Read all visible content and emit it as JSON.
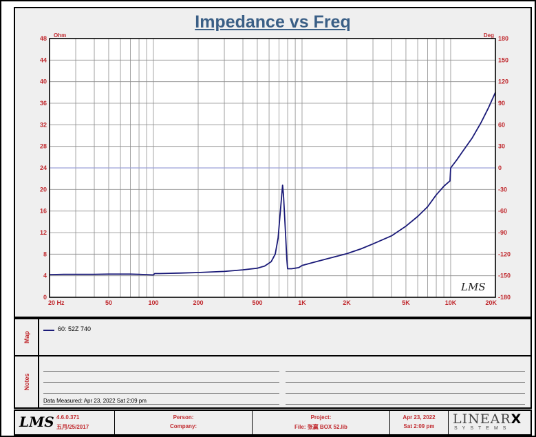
{
  "chart_data": {
    "type": "line",
    "title": "Impedance vs Freq",
    "y_unit_left": "Ohm",
    "y_unit_right": "Deg",
    "x_scale": "log",
    "xlim": [
      20,
      20000
    ],
    "ylim": [
      0,
      48
    ],
    "y2lim": [
      -180,
      180
    ],
    "x_tick_labels": [
      {
        "value": 20,
        "label": "20  Hz"
      },
      {
        "value": 50,
        "label": "50"
      },
      {
        "value": 100,
        "label": "100"
      },
      {
        "value": 200,
        "label": "200"
      },
      {
        "value": 500,
        "label": "500"
      },
      {
        "value": 1000,
        "label": "1K"
      },
      {
        "value": 2000,
        "label": "2K"
      },
      {
        "value": 5000,
        "label": "5K"
      },
      {
        "value": 10000,
        "label": "10K"
      },
      {
        "value": 20000,
        "label": "20K"
      }
    ],
    "y_ticks": [
      0,
      4,
      8,
      12,
      16,
      20,
      24,
      28,
      32,
      36,
      40,
      44,
      48
    ],
    "y2_ticks": [
      -180,
      -150,
      -120,
      -90,
      -60,
      -30,
      0,
      30,
      60,
      90,
      120,
      150,
      180
    ],
    "grid": true,
    "series": [
      {
        "name": "60: 52Z   740",
        "color": "#1a1a78",
        "x": [
          20,
          25,
          30,
          40,
          50,
          60,
          70,
          80,
          90,
          100,
          102,
          110,
          130,
          150,
          200,
          300,
          400,
          500,
          560,
          620,
          660,
          690,
          710,
          730,
          740,
          750,
          770,
          790,
          800,
          850,
          900,
          950,
          1000,
          1200,
          1500,
          2000,
          2500,
          3000,
          4000,
          5000,
          6000,
          7000,
          8000,
          9000,
          9900,
          10000,
          11000,
          12000,
          14000,
          16000,
          18000,
          20000
        ],
        "y": [
          4.2,
          4.25,
          4.25,
          4.25,
          4.3,
          4.3,
          4.3,
          4.25,
          4.2,
          4.15,
          4.4,
          4.4,
          4.45,
          4.5,
          4.6,
          4.8,
          5.1,
          5.4,
          5.8,
          6.6,
          8,
          11,
          15,
          19,
          20.8,
          19,
          13,
          7,
          5.3,
          5.3,
          5.4,
          5.5,
          5.9,
          6.5,
          7.2,
          8.1,
          9,
          9.9,
          11.4,
          13.2,
          15,
          16.8,
          19,
          20.6,
          21.6,
          24,
          25.5,
          27,
          29.6,
          32.4,
          35.2,
          38
        ]
      }
    ],
    "annotations": [
      "LMS"
    ]
  },
  "legend": {
    "tab_label": "Map",
    "entry_label": "60: 52Z   740",
    "entry_color": "#1a1a78"
  },
  "notes": {
    "tab_label": "Notes",
    "data_measured": "Data Measured: Apr 23, 2022  Sat  2:09 pm"
  },
  "footer": {
    "logo": "LMS",
    "version": "4.6.0.371",
    "version_date": "五月/25/2017",
    "person_label": "Person:",
    "company_label": "Company:",
    "project_label": "Project:",
    "file_label": "File: 张赢 BOX 52.lib",
    "date": "Apr 23, 2022",
    "day_time": "Sat  2:09 pm",
    "brand_top": "LINEAR",
    "brand_x": "X",
    "brand_bottom": "SYSTEMS"
  }
}
